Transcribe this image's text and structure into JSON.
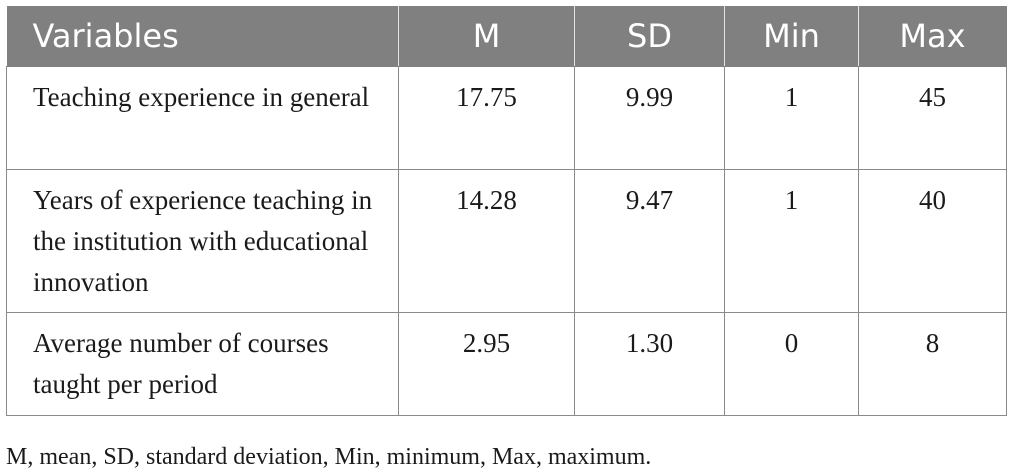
{
  "table": {
    "headers": [
      "Variables",
      "M",
      "SD",
      "Min",
      "Max"
    ],
    "rows": [
      {
        "variable": "Teaching experience in general",
        "m": "17.75",
        "sd": "9.99",
        "min": "1",
        "max": "45"
      },
      {
        "variable": "Years of experience teaching in the institution with educational innovation",
        "m": "14.28",
        "sd": "9.47",
        "min": "1",
        "max": "40"
      },
      {
        "variable": "Average number of courses taught per period",
        "m": "2.95",
        "sd": "1.30",
        "min": "0",
        "max": "8"
      }
    ]
  },
  "footnote": "M, mean, SD, standard deviation, Min, minimum, Max, maximum.",
  "colors": {
    "header_bg": "#808080",
    "header_text": "#ffffff",
    "border": "#8a8a8a"
  }
}
